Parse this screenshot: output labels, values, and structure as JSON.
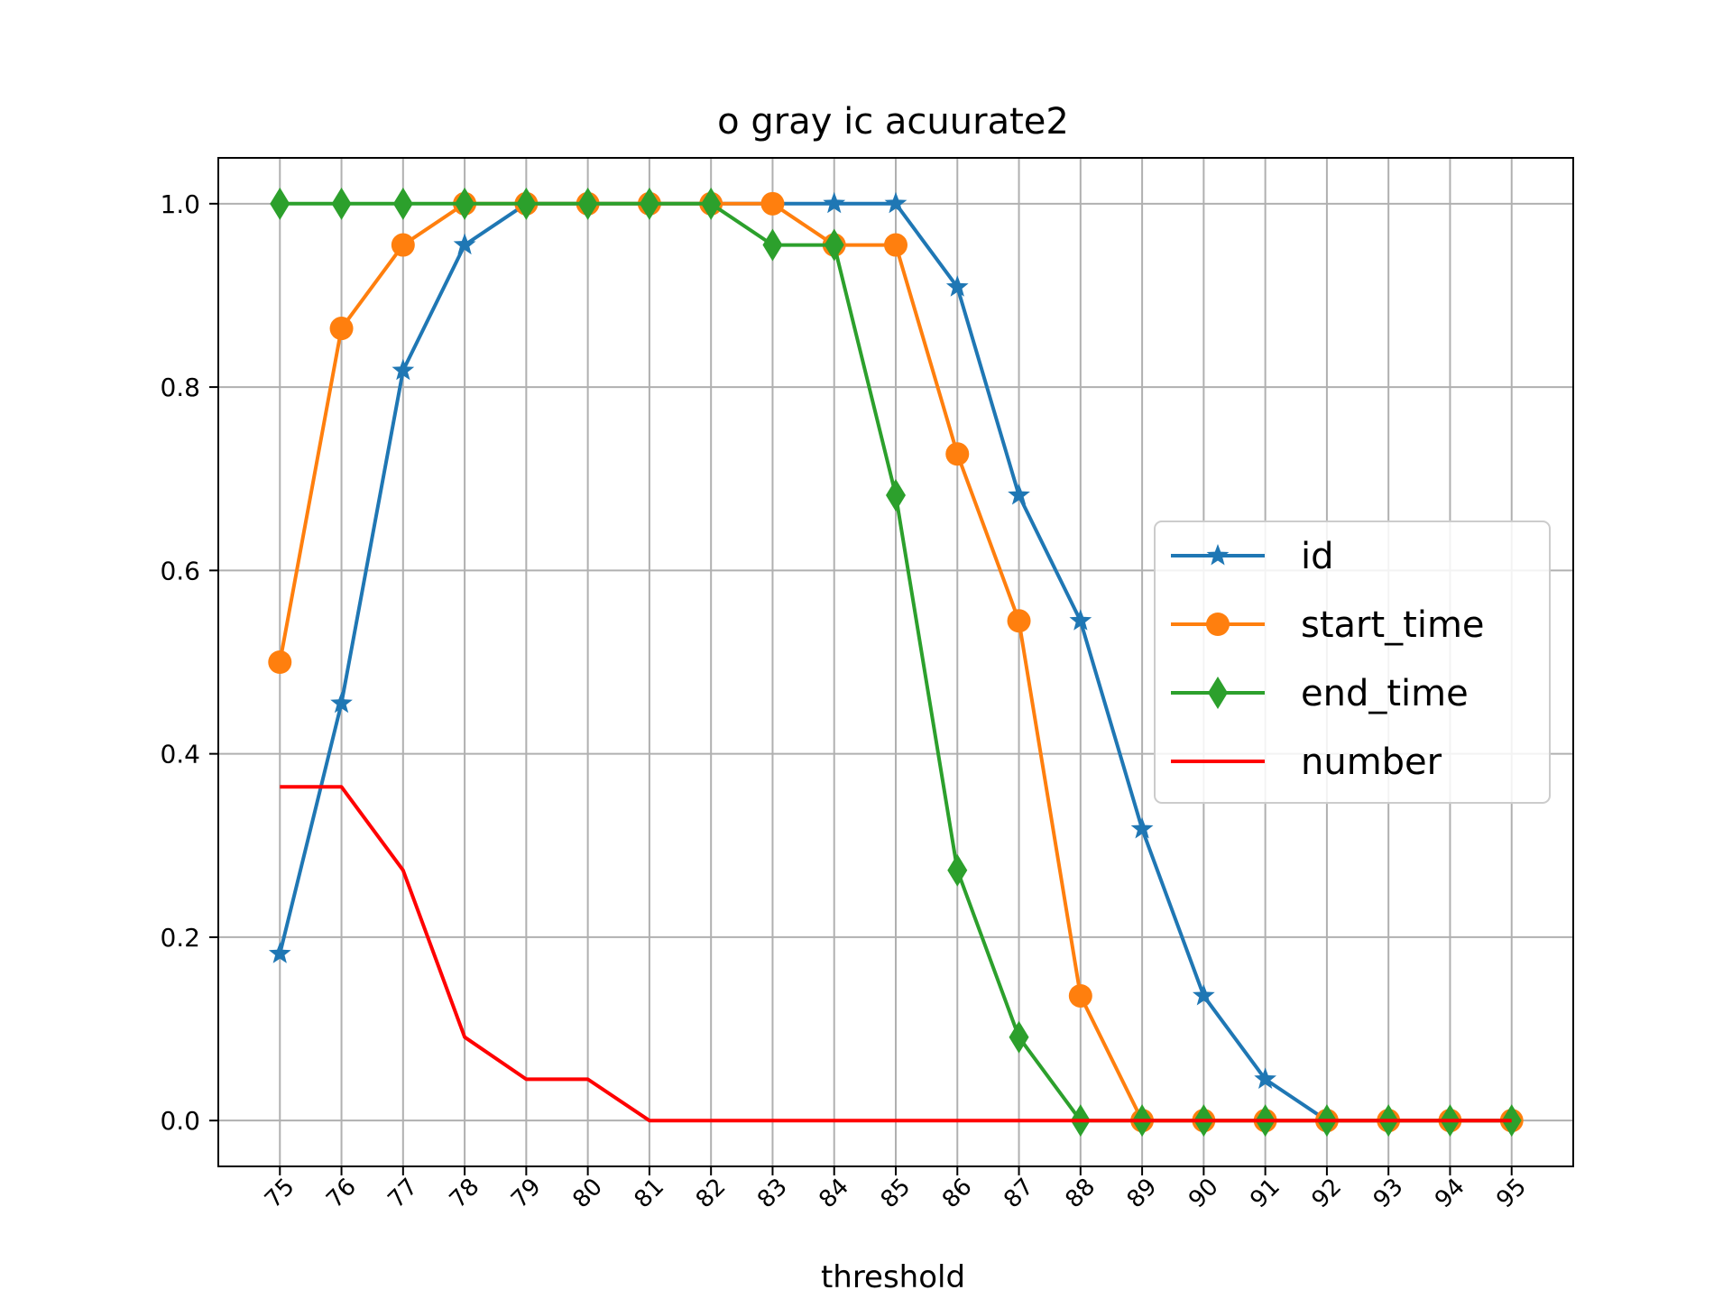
{
  "chart_data": {
    "type": "line",
    "title": "o gray ic acuurate2",
    "xlabel": "threshold",
    "ylabel": "",
    "x": [
      75,
      76,
      77,
      78,
      79,
      80,
      81,
      82,
      83,
      84,
      85,
      86,
      87,
      88,
      89,
      90,
      91,
      92,
      93,
      94,
      95
    ],
    "xlim": [
      74,
      96
    ],
    "ylim": [
      -0.05,
      1.05
    ],
    "yticks": [
      0.0,
      0.2,
      0.4,
      0.6,
      0.8,
      1.0
    ],
    "ytick_labels": [
      "0.0",
      "0.2",
      "0.4",
      "0.6",
      "0.8",
      "1.0"
    ],
    "grid": true,
    "legend_position": "center-right",
    "series": [
      {
        "name": "id",
        "color": "#1f77b4",
        "marker": "star",
        "values": [
          0.182,
          0.455,
          0.818,
          0.955,
          1.0,
          1.0,
          1.0,
          1.0,
          1.0,
          1.0,
          1.0,
          0.909,
          0.682,
          0.545,
          0.318,
          0.136,
          0.045,
          0.0,
          0.0,
          0.0,
          0.0
        ]
      },
      {
        "name": "start_time",
        "color": "#ff7f0e",
        "marker": "circle",
        "values": [
          0.5,
          0.864,
          0.955,
          1.0,
          1.0,
          1.0,
          1.0,
          1.0,
          1.0,
          0.955,
          0.955,
          0.727,
          0.545,
          0.136,
          0.0,
          0.0,
          0.0,
          0.0,
          0.0,
          0.0,
          0.0
        ]
      },
      {
        "name": "end_time",
        "color": "#2ca02c",
        "marker": "diamond",
        "values": [
          1.0,
          1.0,
          1.0,
          1.0,
          1.0,
          1.0,
          1.0,
          1.0,
          0.955,
          0.955,
          0.682,
          0.273,
          0.091,
          0.0,
          0.0,
          0.0,
          0.0,
          0.0,
          0.0,
          0.0,
          0.0
        ]
      },
      {
        "name": "number",
        "color": "#ff0000",
        "marker": "none",
        "values": [
          0.364,
          0.364,
          0.273,
          0.091,
          0.045,
          0.045,
          0.0,
          0.0,
          0.0,
          0.0,
          0.0,
          0.0,
          0.0,
          0.0,
          0.0,
          0.0,
          0.0,
          0.0,
          0.0,
          0.0,
          0.0
        ]
      }
    ]
  }
}
